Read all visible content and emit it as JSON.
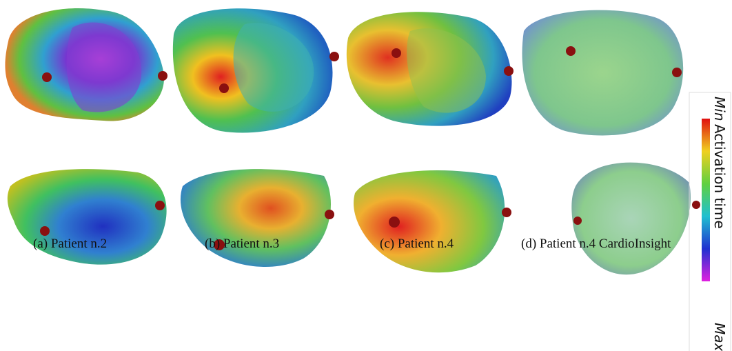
{
  "captions": [
    "(a) Patient n.2",
    "(b) Patient n.3",
    "(c) Patient n.4",
    "(d) Patient n.4 CardioInsight"
  ],
  "colorbar": {
    "min": "Min",
    "label": "Activation time",
    "max": "Max"
  }
}
